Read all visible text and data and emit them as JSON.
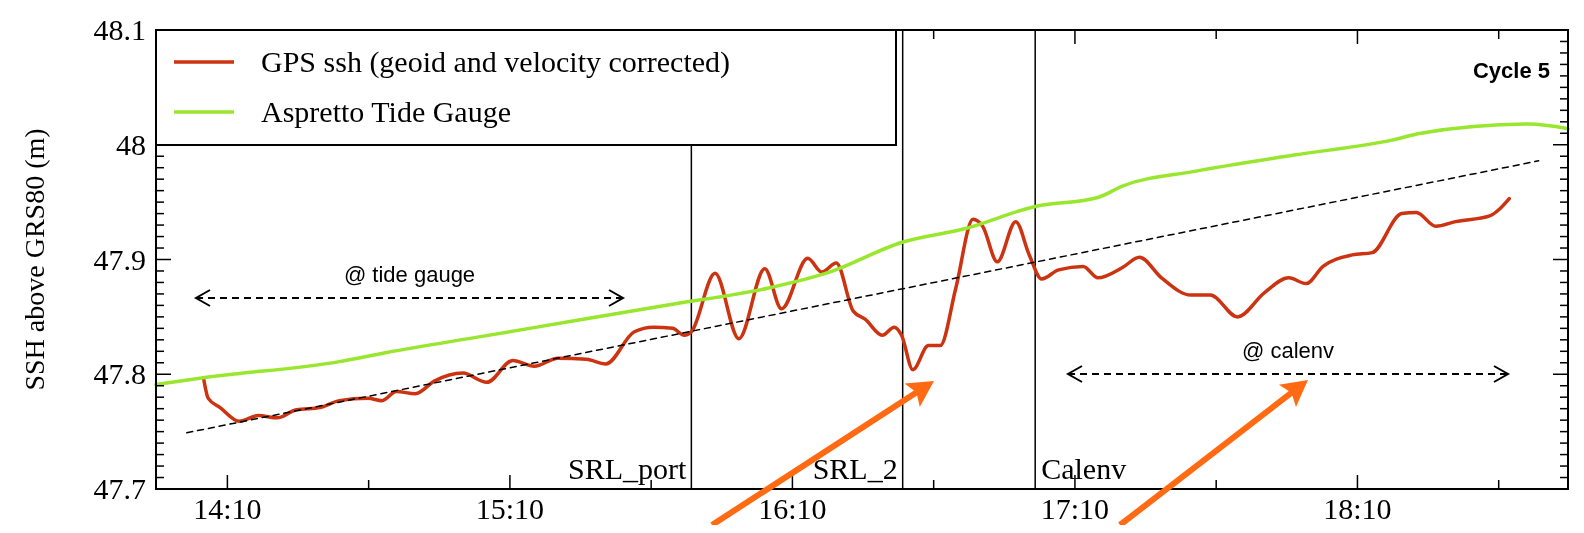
{
  "chart_data": {
    "type": "line",
    "ylabel": "SSH above GRS80 (m)",
    "xlim": [
      13.914,
      18.912
    ],
    "ylim": [
      47.7,
      48.1
    ],
    "xticks": [
      {
        "value": 14.1667,
        "label": "14:10"
      },
      {
        "value": 14.6667,
        "label": null
      },
      {
        "value": 15.1667,
        "label": "15:10"
      },
      {
        "value": 15.6667,
        "label": null
      },
      {
        "value": 16.1667,
        "label": "16:10"
      },
      {
        "value": 16.6667,
        "label": null
      },
      {
        "value": 17.1667,
        "label": "17:10"
      },
      {
        "value": 17.6667,
        "label": null
      },
      {
        "value": 18.1667,
        "label": "18:10"
      },
      {
        "value": 18.6667,
        "label": null
      }
    ],
    "yticks": [
      47.7,
      {
        "value": 47.71,
        "label": null
      },
      {
        "value": 47.72,
        "label": null
      },
      {
        "value": 47.73,
        "label": null
      },
      {
        "value": 47.74,
        "label": null
      },
      {
        "value": 47.75,
        "label": null
      },
      {
        "value": 47.76,
        "label": null
      },
      {
        "value": 47.77,
        "label": null
      },
      {
        "value": 47.78,
        "label": null
      },
      {
        "value": 47.79,
        "label": null
      },
      47.8,
      {
        "value": 47.81,
        "label": null
      },
      {
        "value": 47.82,
        "label": null
      },
      {
        "value": 47.83,
        "label": null
      },
      {
        "value": 47.84,
        "label": null
      },
      {
        "value": 47.85,
        "label": null
      },
      {
        "value": 47.86,
        "label": null
      },
      {
        "value": 47.87,
        "label": null
      },
      {
        "value": 47.88,
        "label": null
      },
      {
        "value": 47.89,
        "label": null
      },
      47.9,
      {
        "value": 47.91,
        "label": null
      },
      {
        "value": 47.92,
        "label": null
      },
      {
        "value": 47.93,
        "label": null
      },
      {
        "value": 47.94,
        "label": null
      },
      {
        "value": 47.95,
        "label": null
      },
      {
        "value": 47.96,
        "label": null
      },
      {
        "value": 47.97,
        "label": null
      },
      {
        "value": 47.98,
        "label": null
      },
      {
        "value": 47.99,
        "label": null
      },
      48,
      {
        "value": 48.01,
        "label": null
      },
      {
        "value": 48.02,
        "label": null
      },
      {
        "value": 48.03,
        "label": null
      },
      {
        "value": 48.04,
        "label": null
      },
      {
        "value": 48.05,
        "label": null
      },
      {
        "value": 48.06,
        "label": null
      },
      {
        "value": 48.07,
        "label": null
      },
      {
        "value": 48.08,
        "label": null
      },
      {
        "value": 48.09,
        "label": null
      },
      48.1
    ],
    "legend": "top left",
    "grid": false,
    "series": [
      {
        "name": "GPS ssh (geoid and velocity corrected)",
        "color": "#cc3311",
        "x": [
          14.082,
          14.099,
          14.141,
          14.209,
          14.276,
          14.343,
          14.411,
          14.495,
          14.563,
          14.664,
          14.714,
          14.765,
          14.832,
          14.899,
          15.0,
          15.085,
          15.177,
          15.253,
          15.337,
          15.438,
          15.506,
          15.607,
          15.674,
          15.742,
          15.784,
          15.809,
          15.893,
          15.977,
          16.069,
          16.128,
          16.221,
          16.271,
          16.322,
          16.382,
          16.424,
          16.485,
          16.527,
          16.553,
          16.593,
          16.648,
          16.69,
          16.745,
          16.806,
          16.84,
          16.892,
          16.957,
          17.005,
          17.049,
          17.109,
          17.196,
          17.248,
          17.335,
          17.395,
          17.473,
          17.577,
          17.646,
          17.742,
          17.837,
          17.924,
          17.985,
          18.045,
          18.149,
          18.219,
          18.323,
          18.375,
          18.444,
          18.514,
          18.635,
          18.67,
          18.704
        ],
        "values": [
          47.797,
          47.779,
          47.771,
          47.759,
          47.764,
          47.762,
          47.769,
          47.771,
          47.777,
          47.779,
          47.777,
          47.785,
          47.783,
          47.794,
          47.801,
          47.793,
          47.812,
          47.807,
          47.814,
          47.813,
          47.809,
          47.837,
          47.841,
          47.84,
          47.834,
          47.837,
          47.888,
          47.831,
          47.892,
          47.857,
          47.901,
          47.889,
          47.897,
          47.855,
          47.848,
          47.834,
          47.841,
          47.834,
          47.804,
          47.825,
          47.825,
          47.875,
          47.935,
          47.929,
          47.898,
          47.933,
          47.904,
          47.883,
          47.891,
          47.894,
          47.884,
          47.893,
          47.902,
          47.884,
          47.869,
          47.869,
          47.85,
          47.871,
          47.884,
          47.879,
          47.894,
          47.904,
          47.906,
          47.94,
          47.941,
          47.929,
          47.933,
          47.938,
          47.944,
          47.953
        ]
      },
      {
        "name": "Aspretto Tide Gauge",
        "color": "#99e62e",
        "x": [
          13.914,
          14.082,
          14.563,
          14.731,
          15.068,
          15.405,
          15.742,
          16.079,
          16.298,
          16.555,
          16.78,
          17.023,
          17.248,
          17.335,
          17.595,
          17.942,
          18.288,
          18.392,
          18.773,
          18.912
        ],
        "values": [
          47.791,
          47.797,
          47.811,
          47.819,
          47.833,
          47.847,
          47.861,
          47.875,
          47.889,
          47.915,
          47.927,
          47.946,
          47.954,
          47.964,
          47.977,
          47.991,
          48.004,
          48.01,
          48.018,
          48.014
        ]
      },
      {
        "color": "#000000",
        "line_style": "dashed",
        "x": [
          14.023,
          18.808
        ],
        "values": [
          47.749,
          47.986
        ]
      }
    ],
    "ref_lines": [
      {
        "axis": "x",
        "value": 15.809,
        "label": "SRL_port"
      },
      {
        "axis": "x",
        "value": 16.557,
        "label": "SRL_2"
      },
      {
        "axis": "x",
        "value": 17.026,
        "label": "Calenv"
      }
    ],
    "annotations": [
      "Cycle 5",
      "@ tide gauge",
      "@ calenv"
    ]
  }
}
